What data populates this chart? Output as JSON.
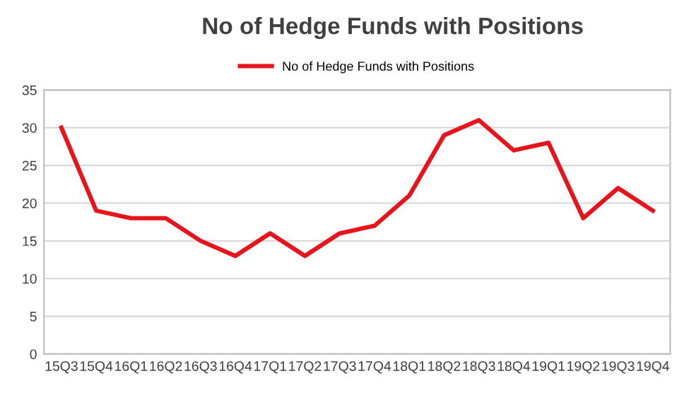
{
  "chart_data": {
    "type": "line",
    "title": "No of Hedge Funds with Positions",
    "categories": [
      "15Q3",
      "15Q4",
      "16Q1",
      "16Q2",
      "16Q3",
      "16Q4",
      "17Q1",
      "17Q2",
      "17Q3",
      "17Q4",
      "18Q1",
      "18Q2",
      "18Q3",
      "18Q4",
      "19Q1",
      "19Q2",
      "19Q3",
      "19Q4"
    ],
    "series": [
      {
        "name": "No of Hedge Funds with Positions",
        "color": "#e8141b",
        "values": [
          30,
          19,
          18,
          18,
          15,
          13,
          16,
          13,
          16,
          17,
          21,
          29,
          31,
          27,
          28,
          18,
          22,
          19
        ]
      }
    ],
    "ylim": [
      0,
      35
    ],
    "yticks": [
      0,
      5,
      10,
      15,
      20,
      25,
      30,
      35
    ],
    "grid": "y",
    "legend": "top",
    "marker": "none",
    "line_style": "solid"
  }
}
